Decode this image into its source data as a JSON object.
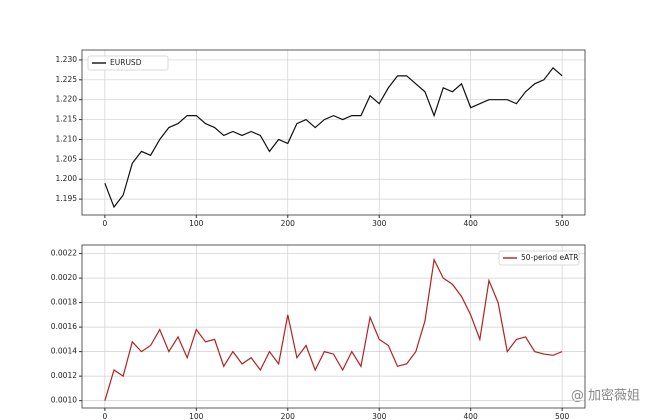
{
  "chart_data": [
    {
      "type": "line",
      "legend": "upper left",
      "grid": true,
      "x": [
        0,
        10,
        20,
        30,
        40,
        50,
        60,
        70,
        80,
        90,
        100,
        110,
        120,
        130,
        140,
        150,
        160,
        170,
        180,
        190,
        200,
        210,
        220,
        230,
        240,
        250,
        260,
        270,
        280,
        290,
        300,
        310,
        320,
        330,
        340,
        350,
        360,
        370,
        380,
        390,
        400,
        410,
        420,
        430,
        440,
        450,
        460,
        470,
        480,
        490,
        500
      ],
      "series": [
        {
          "name": "EURUSD",
          "color": "#111111",
          "values": [
            1.199,
            1.193,
            1.196,
            1.204,
            1.207,
            1.206,
            1.21,
            1.213,
            1.214,
            1.216,
            1.216,
            1.214,
            1.213,
            1.211,
            1.212,
            1.211,
            1.212,
            1.211,
            1.207,
            1.21,
            1.209,
            1.214,
            1.215,
            1.213,
            1.215,
            1.216,
            1.215,
            1.216,
            1.216,
            1.221,
            1.219,
            1.223,
            1.226,
            1.226,
            1.224,
            1.222,
            1.216,
            1.223,
            1.222,
            1.224,
            1.218,
            1.219,
            1.22,
            1.22,
            1.22,
            1.219,
            1.222,
            1.224,
            1.225,
            1.228,
            1.226
          ]
        }
      ],
      "xlim": [
        -25,
        525
      ],
      "xticks": [
        0,
        100,
        200,
        300,
        400,
        500
      ],
      "ylim": [
        1.191,
        1.2325
      ],
      "yticks": [
        1.195,
        {
          "value": 1.2,
          "label": "1.200"
        },
        1.205,
        {
          "value": 1.21,
          "label": "1.210"
        },
        1.215,
        {
          "value": 1.22,
          "label": "1.220"
        },
        1.225,
        {
          "value": 1.23,
          "label": "1.230"
        }
      ]
    },
    {
      "type": "line",
      "legend": "upper right",
      "grid": true,
      "x": [
        0,
        10,
        20,
        30,
        40,
        50,
        60,
        70,
        80,
        90,
        100,
        110,
        120,
        130,
        140,
        150,
        160,
        170,
        180,
        190,
        200,
        210,
        220,
        230,
        240,
        250,
        260,
        270,
        280,
        290,
        300,
        310,
        320,
        330,
        340,
        350,
        360,
        370,
        380,
        390,
        400,
        410,
        420,
        430,
        440,
        450,
        460,
        470,
        480,
        490,
        500
      ],
      "series": [
        {
          "name": "50-period eATR",
          "color": "#b22222",
          "values": [
            0.001,
            0.00125,
            0.0012,
            0.00148,
            0.0014,
            0.00145,
            0.00158,
            0.0014,
            0.00152,
            0.00135,
            0.00158,
            0.00148,
            0.0015,
            0.00128,
            0.0014,
            0.0013,
            0.00135,
            0.00125,
            0.0014,
            0.0013,
            0.0017,
            0.00135,
            0.00145,
            0.00125,
            0.0014,
            0.00138,
            0.00125,
            0.0014,
            0.00128,
            0.00168,
            0.0015,
            0.00145,
            0.00128,
            0.0013,
            0.0014,
            0.00165,
            0.00215,
            0.002,
            0.00195,
            0.00185,
            0.0017,
            0.0015,
            0.00198,
            0.0018,
            0.0014,
            0.0015,
            0.00152,
            0.0014,
            0.00138,
            0.00137,
            0.0014
          ]
        }
      ],
      "xlim": [
        -25,
        525
      ],
      "xticks": [
        0,
        100,
        200,
        300,
        400,
        500
      ],
      "ylim": [
        0.00094,
        0.00227
      ],
      "yticks": [
        {
          "value": 0.001,
          "label": "0.0010"
        },
        0.0012,
        0.0014,
        0.0016,
        0.0018,
        {
          "value": 0.002,
          "label": "0.0020"
        },
        0.0022
      ]
    }
  ],
  "watermark": "@ 加密薇姐"
}
